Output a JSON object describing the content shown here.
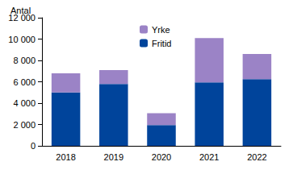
{
  "chart_data": {
    "type": "bar",
    "stacked": true,
    "ylabel": "Antal",
    "categories": [
      "2018",
      "2019",
      "2020",
      "2021",
      "2022"
    ],
    "series": [
      {
        "name": "Fritid",
        "color": "#00449b",
        "values": [
          5000,
          5800,
          1950,
          5950,
          6250
        ]
      },
      {
        "name": "Yrke",
        "color": "#9b83c6",
        "values": [
          1800,
          1300,
          1100,
          4150,
          2350
        ]
      }
    ],
    "ylim": [
      0,
      12000
    ],
    "yticks": [
      0,
      {
        "value": 2000,
        "label": "2 000"
      },
      {
        "value": 4000,
        "label": "4 000"
      },
      {
        "value": 6000,
        "label": "6 000"
      },
      {
        "value": 8000,
        "label": "8 000"
      },
      {
        "value": 10000,
        "label": "10 000"
      },
      {
        "value": 12000,
        "label": "12 000"
      }
    ],
    "grid": false,
    "legend": "top"
  }
}
